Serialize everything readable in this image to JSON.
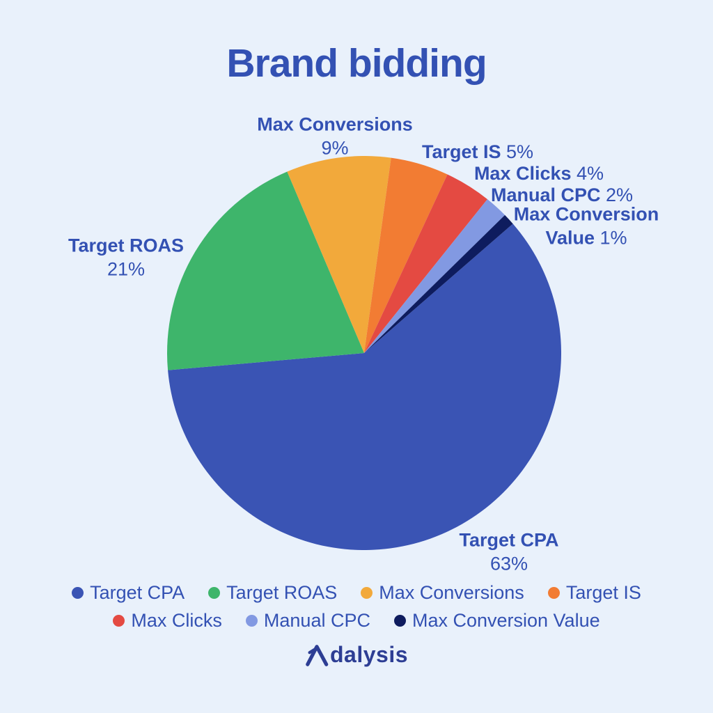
{
  "title": "Brand bidding",
  "chart_data": {
    "type": "pie",
    "title": "Brand bidding",
    "unit": "%",
    "start_angle_deg": 41,
    "direction": "clockwise",
    "legend_position": "bottom",
    "series": [
      {
        "label": "Target CPA",
        "value": 63,
        "display": "63%",
        "color": "#3a54b4"
      },
      {
        "label": "Target ROAS",
        "value": 21,
        "display": "21%",
        "color": "#3eb56b"
      },
      {
        "label": "Max Conversions",
        "value": 9,
        "display": "9%",
        "color": "#f2a93b"
      },
      {
        "label": "Target IS",
        "value": 5,
        "display": "5%",
        "color": "#f27c33"
      },
      {
        "label": "Max Clicks",
        "value": 4,
        "display": "4%",
        "color": "#e44a42"
      },
      {
        "label": "Manual CPC",
        "value": 2,
        "display": "2%",
        "color": "#8299e2"
      },
      {
        "label": "Max Conversion Value",
        "value": 1,
        "display": "1%",
        "color": "#0e1c5e"
      }
    ]
  },
  "callouts": {
    "max_conversions": {
      "label": "Max Conversions",
      "pct": "9%"
    },
    "target_is": {
      "label": "Target IS",
      "pct": "5%"
    },
    "max_clicks": {
      "label": "Max Clicks",
      "pct": "4%"
    },
    "manual_cpc": {
      "label": "Manual CPC",
      "pct": "2%"
    },
    "max_conversion_value": {
      "line1": "Max Conversion",
      "line2": "Value",
      "pct": "1%"
    },
    "target_roas": {
      "label": "Target ROAS",
      "pct": "21%"
    },
    "target_cpa": {
      "label": "Target CPA",
      "pct": "63%"
    }
  },
  "legend": {
    "rows": [
      [
        0,
        1,
        2,
        3
      ],
      [
        4,
        5,
        6
      ]
    ]
  },
  "footer": {
    "brand": "Adalysis"
  },
  "colors": {
    "background": "#e9f1fb",
    "text": "#3351b3",
    "logo": "#2d3e94"
  }
}
